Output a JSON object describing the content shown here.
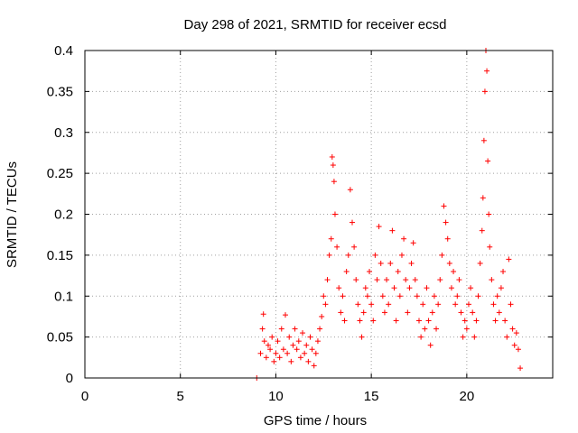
{
  "chart_data": {
    "type": "scatter",
    "title": "Day 298 of 2021, SRMTID for receiver ecsd",
    "xlabel": "GPS time / hours",
    "ylabel": "SRMTID / TECUs",
    "xlim": [
      0,
      24.5
    ],
    "ylim": [
      0,
      0.4
    ],
    "grid": true,
    "marker": "+",
    "color": "#ff0000",
    "x_ticks": [
      0,
      5,
      10,
      15,
      20
    ],
    "x_tick_labels": [
      "0",
      "5",
      "10",
      "15",
      "20"
    ],
    "y_ticks": [
      0,
      0.05,
      0.1,
      0.15,
      0.2,
      0.25,
      0.3,
      0.35,
      0.4
    ],
    "y_tick_labels": [
      "0",
      "0.05",
      "0.1",
      "0.15",
      "0.2",
      "0.25",
      "0.3",
      "0.35",
      "0.4"
    ],
    "series": [
      {
        "name": "SRMTID",
        "points": [
          [
            9.0,
            0.0
          ],
          [
            9.2,
            0.03
          ],
          [
            9.3,
            0.06
          ],
          [
            9.35,
            0.078
          ],
          [
            9.4,
            0.045
          ],
          [
            9.5,
            0.025
          ],
          [
            9.6,
            0.04
          ],
          [
            9.7,
            0.035
          ],
          [
            9.8,
            0.05
          ],
          [
            9.9,
            0.02
          ],
          [
            10.0,
            0.03
          ],
          [
            10.1,
            0.045
          ],
          [
            10.2,
            0.025
          ],
          [
            10.3,
            0.06
          ],
          [
            10.4,
            0.035
          ],
          [
            10.5,
            0.077
          ],
          [
            10.6,
            0.03
          ],
          [
            10.7,
            0.05
          ],
          [
            10.8,
            0.02
          ],
          [
            10.9,
            0.04
          ],
          [
            11.0,
            0.06
          ],
          [
            11.1,
            0.035
          ],
          [
            11.2,
            0.045
          ],
          [
            11.3,
            0.025
          ],
          [
            11.4,
            0.055
          ],
          [
            11.5,
            0.03
          ],
          [
            11.6,
            0.04
          ],
          [
            11.7,
            0.02
          ],
          [
            11.8,
            0.05
          ],
          [
            11.9,
            0.035
          ],
          [
            12.0,
            0.015
          ],
          [
            12.1,
            0.03
          ],
          [
            12.2,
            0.045
          ],
          [
            12.3,
            0.06
          ],
          [
            12.4,
            0.075
          ],
          [
            12.5,
            0.1
          ],
          [
            12.6,
            0.09
          ],
          [
            12.7,
            0.12
          ],
          [
            12.8,
            0.15
          ],
          [
            12.9,
            0.17
          ],
          [
            12.95,
            0.27
          ],
          [
            13.0,
            0.26
          ],
          [
            13.05,
            0.24
          ],
          [
            13.1,
            0.2
          ],
          [
            13.2,
            0.16
          ],
          [
            13.3,
            0.11
          ],
          [
            13.4,
            0.08
          ],
          [
            13.5,
            0.1
          ],
          [
            13.6,
            0.07
          ],
          [
            13.7,
            0.13
          ],
          [
            13.8,
            0.15
          ],
          [
            13.9,
            0.23
          ],
          [
            14.0,
            0.19
          ],
          [
            14.1,
            0.16
          ],
          [
            14.2,
            0.12
          ],
          [
            14.3,
            0.09
          ],
          [
            14.4,
            0.07
          ],
          [
            14.5,
            0.05
          ],
          [
            14.6,
            0.08
          ],
          [
            14.7,
            0.11
          ],
          [
            14.8,
            0.1
          ],
          [
            14.9,
            0.13
          ],
          [
            15.0,
            0.09
          ],
          [
            15.1,
            0.07
          ],
          [
            15.2,
            0.15
          ],
          [
            15.3,
            0.12
          ],
          [
            15.4,
            0.185
          ],
          [
            15.5,
            0.14
          ],
          [
            15.6,
            0.1
          ],
          [
            15.7,
            0.08
          ],
          [
            15.8,
            0.12
          ],
          [
            15.9,
            0.09
          ],
          [
            16.0,
            0.14
          ],
          [
            16.1,
            0.18
          ],
          [
            16.2,
            0.11
          ],
          [
            16.3,
            0.07
          ],
          [
            16.4,
            0.13
          ],
          [
            16.5,
            0.1
          ],
          [
            16.6,
            0.15
          ],
          [
            16.7,
            0.17
          ],
          [
            16.8,
            0.12
          ],
          [
            16.9,
            0.08
          ],
          [
            17.0,
            0.11
          ],
          [
            17.1,
            0.14
          ],
          [
            17.2,
            0.165
          ],
          [
            17.3,
            0.12
          ],
          [
            17.4,
            0.1
          ],
          [
            17.5,
            0.07
          ],
          [
            17.6,
            0.05
          ],
          [
            17.7,
            0.09
          ],
          [
            17.8,
            0.06
          ],
          [
            17.9,
            0.11
          ],
          [
            18.0,
            0.07
          ],
          [
            18.1,
            0.04
          ],
          [
            18.2,
            0.08
          ],
          [
            18.3,
            0.1
          ],
          [
            18.4,
            0.06
          ],
          [
            18.5,
            0.09
          ],
          [
            18.6,
            0.12
          ],
          [
            18.7,
            0.15
          ],
          [
            18.8,
            0.21
          ],
          [
            18.9,
            0.19
          ],
          [
            19.0,
            0.17
          ],
          [
            19.1,
            0.14
          ],
          [
            19.2,
            0.11
          ],
          [
            19.3,
            0.13
          ],
          [
            19.4,
            0.09
          ],
          [
            19.5,
            0.1
          ],
          [
            19.6,
            0.12
          ],
          [
            19.7,
            0.08
          ],
          [
            19.8,
            0.05
          ],
          [
            19.9,
            0.07
          ],
          [
            20.0,
            0.06
          ],
          [
            20.1,
            0.09
          ],
          [
            20.2,
            0.11
          ],
          [
            20.3,
            0.08
          ],
          [
            20.4,
            0.05
          ],
          [
            20.5,
            0.07
          ],
          [
            20.6,
            0.1
          ],
          [
            20.7,
            0.14
          ],
          [
            20.8,
            0.18
          ],
          [
            20.85,
            0.22
          ],
          [
            20.9,
            0.29
          ],
          [
            20.95,
            0.35
          ],
          [
            21.0,
            0.4
          ],
          [
            21.05,
            0.375
          ],
          [
            21.1,
            0.265
          ],
          [
            21.15,
            0.2
          ],
          [
            21.2,
            0.16
          ],
          [
            21.3,
            0.12
          ],
          [
            21.4,
            0.09
          ],
          [
            21.5,
            0.07
          ],
          [
            21.6,
            0.1
          ],
          [
            21.7,
            0.08
          ],
          [
            21.8,
            0.11
          ],
          [
            21.9,
            0.13
          ],
          [
            22.0,
            0.07
          ],
          [
            22.1,
            0.05
          ],
          [
            22.2,
            0.145
          ],
          [
            22.3,
            0.09
          ],
          [
            22.4,
            0.06
          ],
          [
            22.5,
            0.04
          ],
          [
            22.6,
            0.055
          ],
          [
            22.7,
            0.035
          ],
          [
            22.8,
            0.012
          ]
        ]
      }
    ]
  }
}
